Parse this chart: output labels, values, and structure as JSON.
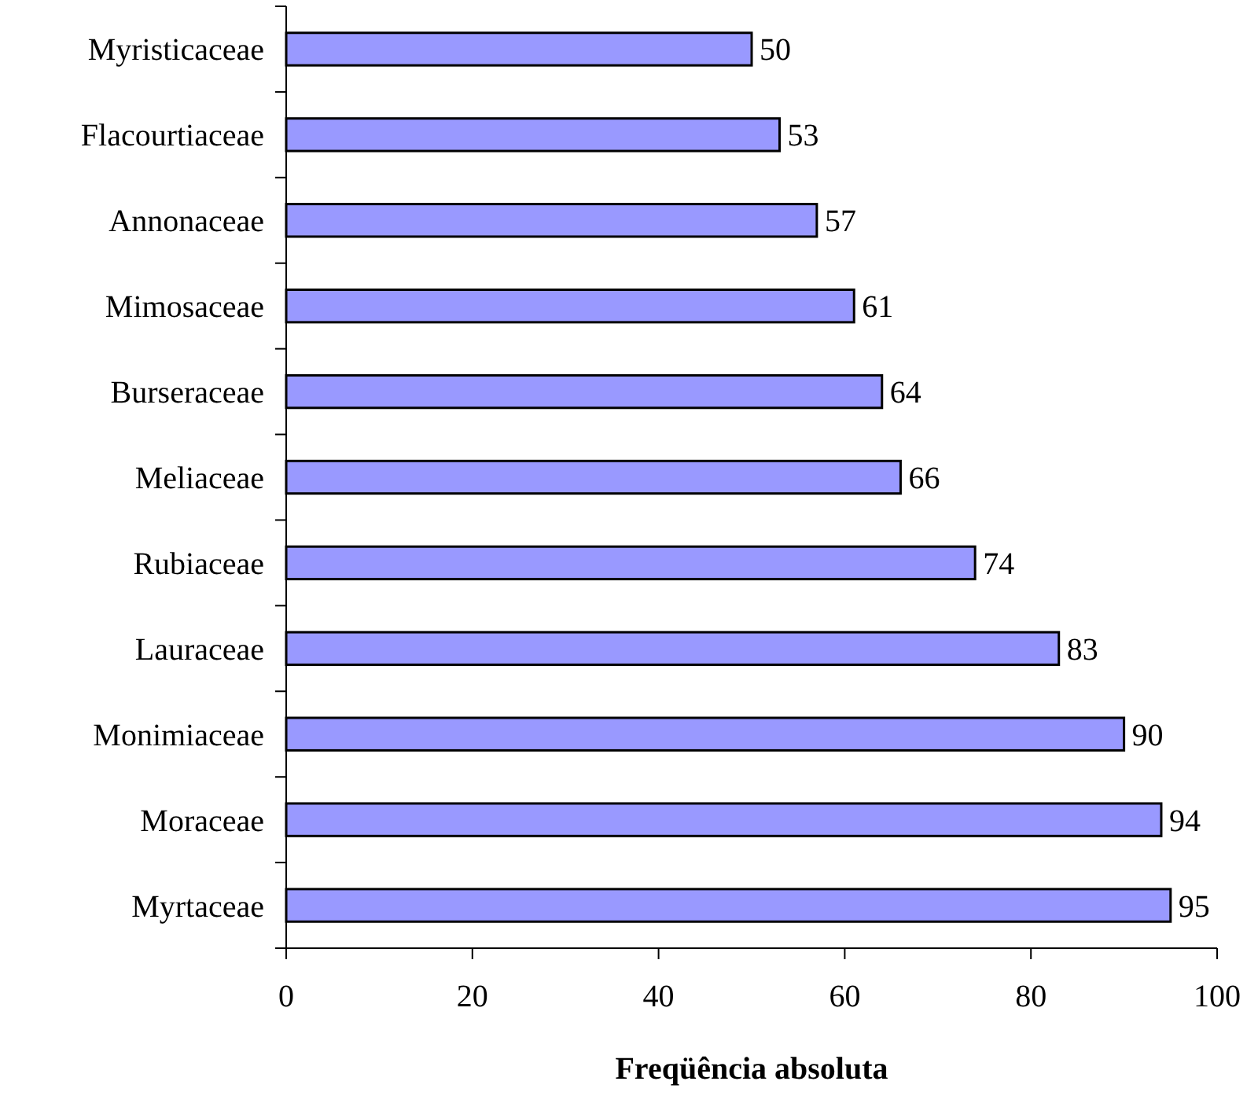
{
  "chart_data": {
    "type": "bar",
    "orientation": "horizontal",
    "xlabel": "Freqüência absoluta",
    "categories": [
      "Myristicaceae",
      "Flacourtiaceae",
      "Annonaceae",
      "Mimosaceae",
      "Burseraceae",
      "Meliaceae",
      "Rubiaceae",
      "Lauraceae",
      "Monimiaceae",
      "Moraceae",
      "Myrtaceae"
    ],
    "values": [
      50,
      53,
      57,
      61,
      64,
      66,
      74,
      83,
      90,
      94,
      95
    ],
    "color": "#9999ff",
    "xlim": [
      0,
      100
    ],
    "xticks": [
      0,
      20,
      40,
      60,
      80,
      100
    ],
    "grid": false,
    "data_labels": true
  }
}
